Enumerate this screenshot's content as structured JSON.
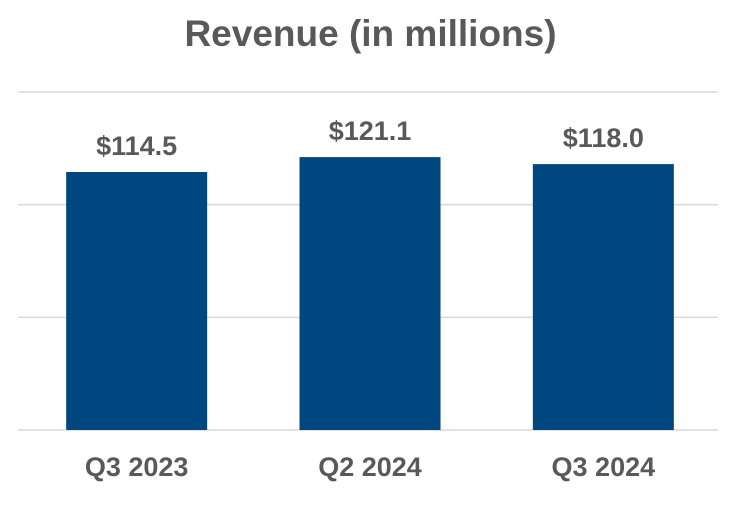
{
  "chart_data": {
    "type": "bar",
    "title": "Revenue (in millions)",
    "xlabel": "",
    "ylabel": "",
    "categories": [
      "Q3 2023",
      "Q2 2024",
      "Q3 2024"
    ],
    "values": [
      114.5,
      121.1,
      118.0
    ],
    "data_labels": [
      "$114.5",
      "$121.1",
      "$118.0"
    ],
    "ylim": [
      0,
      150
    ],
    "gridlines": [
      0,
      50,
      100,
      150
    ],
    "grid": true,
    "legend": "none",
    "colors": {
      "bar": "#00467F",
      "title": "#595959",
      "label": "#595959",
      "grid": "#D9D9D9"
    }
  }
}
